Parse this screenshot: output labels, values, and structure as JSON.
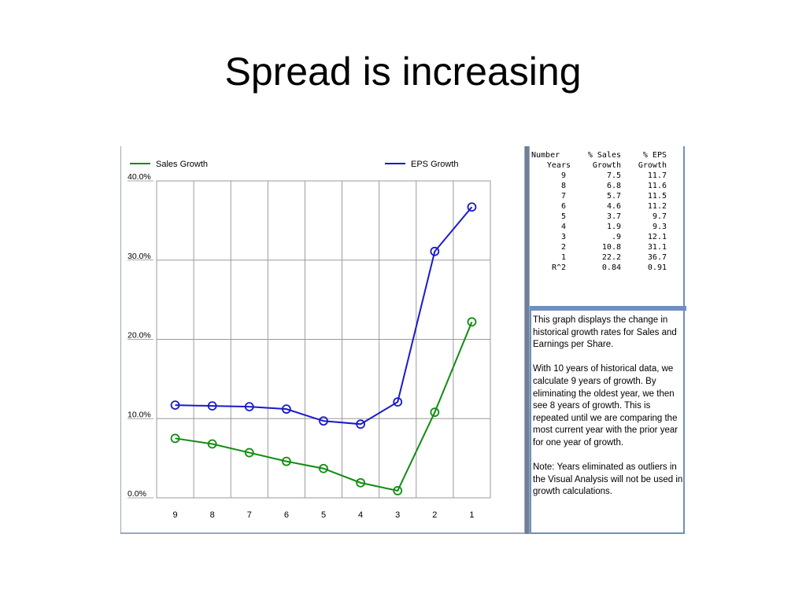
{
  "slide": {
    "title": "Spread is increasing"
  },
  "chart_data": {
    "type": "line",
    "categories": [
      "9",
      "8",
      "7",
      "6",
      "5",
      "4",
      "3",
      "2",
      "1"
    ],
    "series": [
      {
        "name": "Sales Growth",
        "color": "#108c10",
        "values": [
          7.5,
          6.8,
          5.7,
          4.6,
          3.7,
          1.9,
          0.9,
          10.8,
          22.2
        ]
      },
      {
        "name": "EPS Growth",
        "color": "#1a1acc",
        "values": [
          11.7,
          11.6,
          11.5,
          11.2,
          9.7,
          9.3,
          12.1,
          31.1,
          36.7
        ]
      }
    ],
    "y_ticks": [
      "40.0%",
      "30.0%",
      "20.0%",
      "10.0%",
      "0.0%"
    ],
    "ylim": [
      0,
      40
    ],
    "grid": true,
    "legend": "top",
    "marker": "circle-open"
  },
  "table": {
    "header_row1": [
      "Number",
      "% Sales",
      "% EPS"
    ],
    "header_row2": [
      "Years",
      "Growth",
      "Growth"
    ],
    "rows": [
      [
        "9",
        "7.5",
        "11.7"
      ],
      [
        "8",
        "6.8",
        "11.6"
      ],
      [
        "7",
        "5.7",
        "11.5"
      ],
      [
        "6",
        "4.6",
        "11.2"
      ],
      [
        "5",
        "3.7",
        "9.7"
      ],
      [
        "4",
        "1.9",
        "9.3"
      ],
      [
        "3",
        ".9",
        "12.1"
      ],
      [
        "2",
        "10.8",
        "31.1"
      ],
      [
        "1",
        "22.2",
        "36.7"
      ],
      [
        "R^2",
        "0.84",
        "0.91"
      ]
    ]
  },
  "description": {
    "p1": "This graph displays the change in historical growth rates for Sales and Earnings per Share.",
    "p2": "With 10 years of historical data, we calculate 9 years of growth. By eliminating the oldest year, we then see 8 years of growth. This is repeated until we are comparing the most current year with the prior year for one year of growth.",
    "p3": "Note: Years eliminated as outliers in the Visual Analysis will not be used in growth calculations."
  }
}
